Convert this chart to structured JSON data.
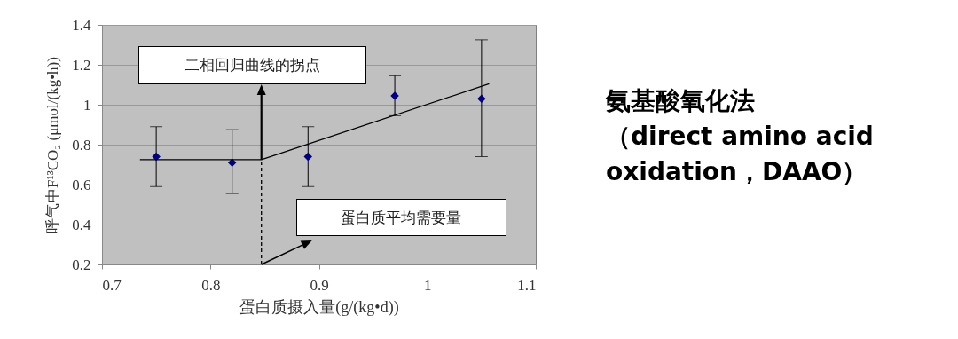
{
  "chart_data": {
    "type": "scatter",
    "title": "氨基酸氧化法",
    "subtitle": "（direct amino acid oxidation，DAAO）",
    "xlabel": "蛋白质摄入量(g/(kg•d))",
    "ylabel": "呼气中F¹³CO₂ (μmol/(kg•h))",
    "x": [
      0.75,
      0.82,
      0.89,
      0.97,
      1.05
    ],
    "series": [
      {
        "marker": "diamond",
        "color": "#000080",
        "values": [
          0.74,
          0.71,
          0.74,
          1.045,
          1.03
        ],
        "errors": [
          [
            0.59,
            0.89
          ],
          [
            0.555,
            0.875
          ],
          [
            0.59,
            0.89
          ],
          [
            0.945,
            1.145
          ],
          [
            0.74,
            1.325
          ]
        ]
      },
      {
        "type": "line",
        "marker": "none",
        "color": "#000000",
        "x": [
          0.735,
          0.847,
          1.057
        ],
        "values": [
          0.725,
          0.725,
          1.105
        ]
      }
    ],
    "xlim": [
      0.7,
      1.1
    ],
    "xticks": [
      0.7,
      0.8,
      0.9,
      1,
      1.1
    ],
    "ylim": [
      0.2,
      1.4
    ],
    "yticks": [
      0.2,
      0.4,
      0.6,
      0.8,
      1,
      1.2,
      1.4
    ],
    "ref_lines": [
      {
        "axis": "x",
        "value": 0.847,
        "label": null,
        "color": "#000000",
        "line_style": "dashed"
      }
    ],
    "annotations": [
      "二相回归曲线的拐点",
      "蛋白质平均需要量"
    ],
    "grid": "y"
  }
}
